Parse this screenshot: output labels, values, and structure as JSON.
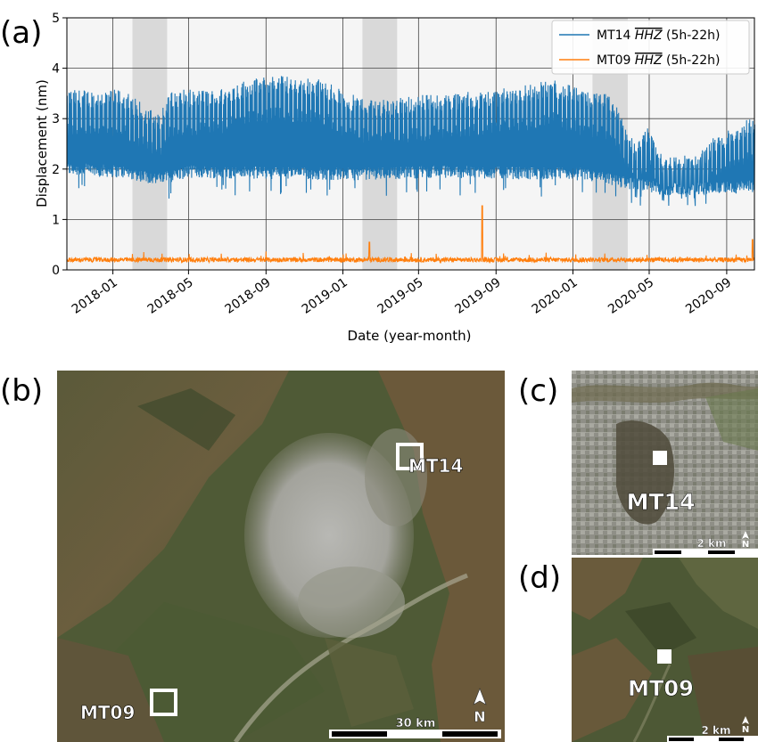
{
  "panels": {
    "a": "(a)",
    "b": "(b)",
    "c": "(c)",
    "d": "(d)"
  },
  "chart_data": {
    "type": "line",
    "xlabel": "Date (year-month)",
    "ylabel": "Displacement (nm)",
    "xlim": [
      "2017-10-20",
      "2020-10-15"
    ],
    "ylim": [
      0,
      5
    ],
    "yticks": [
      0,
      1,
      2,
      3,
      4,
      5
    ],
    "xticks": [
      "2018-01",
      "2018-05",
      "2018-09",
      "2019-01",
      "2019-05",
      "2019-09",
      "2020-01",
      "2020-05",
      "2020-09"
    ],
    "grid": true,
    "legend_position": "top-right",
    "shaded_periods": [
      [
        "2018-02-01",
        "2018-03-28"
      ],
      [
        "2019-02-01",
        "2019-03-28"
      ],
      [
        "2020-02-01",
        "2020-03-28"
      ]
    ],
    "series": [
      {
        "name": "MT14 HHZ (5h-22h)",
        "name_prefix": "MT14 ",
        "name_overline": "HHZ",
        "name_suffix": " (5h-22h)",
        "color": "#1f77b4",
        "daily_high_level": [
          [
            "2017-10-20",
            3.4
          ],
          [
            "2018-01-15",
            3.4
          ],
          [
            "2018-02-20",
            3.1
          ],
          [
            "2018-03-15",
            2.9
          ],
          [
            "2018-04-01",
            3.4
          ],
          [
            "2018-06-15",
            3.4
          ],
          [
            "2018-08-01",
            3.6
          ],
          [
            "2018-09-20",
            3.7
          ],
          [
            "2018-12-01",
            3.6
          ],
          [
            "2019-01-15",
            3.3
          ],
          [
            "2019-03-15",
            3.2
          ],
          [
            "2019-05-01",
            3.3
          ],
          [
            "2019-09-01",
            3.4
          ],
          [
            "2019-12-01",
            3.6
          ],
          [
            "2020-01-15",
            3.4
          ],
          [
            "2020-03-01",
            3.3
          ],
          [
            "2020-03-20",
            2.8
          ],
          [
            "2020-04-10",
            2.3
          ],
          [
            "2020-05-01",
            2.7
          ],
          [
            "2020-05-20",
            2.1
          ],
          [
            "2020-07-15",
            2.1
          ],
          [
            "2020-08-15",
            2.5
          ],
          [
            "2020-10-15",
            2.9
          ]
        ],
        "daily_low_level": [
          [
            "2017-10-20",
            2.0
          ],
          [
            "2018-01-15",
            1.95
          ],
          [
            "2018-03-15",
            1.8
          ],
          [
            "2018-05-01",
            1.95
          ],
          [
            "2019-01-15",
            1.9
          ],
          [
            "2019-06-01",
            1.95
          ],
          [
            "2020-01-15",
            1.9
          ],
          [
            "2020-03-20",
            1.75
          ],
          [
            "2020-04-10",
            1.7
          ],
          [
            "2020-06-01",
            1.6
          ],
          [
            "2020-10-15",
            1.65
          ]
        ]
      },
      {
        "name": "MT09 HHZ (5h-22h)",
        "name_prefix": "MT09 ",
        "name_overline": "HHZ",
        "name_suffix": " (5h-22h)",
        "color": "#ff7f0e",
        "baseline": 0.2,
        "spikes": [
          [
            "2019-02-12",
            0.55
          ],
          [
            "2019-08-10",
            1.27
          ],
          [
            "2020-10-12",
            0.6
          ]
        ]
      }
    ]
  },
  "maps": {
    "b": {
      "sites": [
        {
          "label": "MT14"
        },
        {
          "label": "MT09"
        }
      ],
      "scale_label": "30 km",
      "north_label": "N"
    },
    "c": {
      "site_label": "MT14",
      "scale_label": "2 km",
      "north_label": "N"
    },
    "d": {
      "site_label": "MT09",
      "scale_label": "2 km",
      "north_label": "N"
    }
  }
}
